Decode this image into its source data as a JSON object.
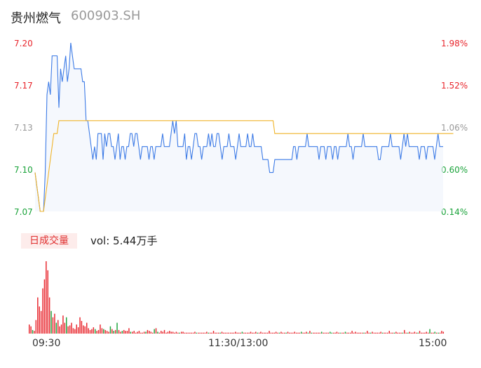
{
  "header": {
    "name": "贵州燃气",
    "code": "600903.SH"
  },
  "volume_panel": {
    "tab_label": "日成交量",
    "vol_label": "vol: 5.44万手"
  },
  "colors": {
    "price_line": "#3d7be6",
    "avg_line": "#f0b429",
    "up": "#e8252c",
    "down": "#1aa33a",
    "neutral": "#999999"
  },
  "chart_data": [
    {
      "type": "line",
      "y_ticks": [
        "7.20",
        "7.17",
        "7.13",
        "7.10",
        "7.07"
      ],
      "pct_ticks": [
        "1.98%",
        "1.52%",
        "1.06%",
        "0.60%",
        "0.14%"
      ],
      "x_ticks": [
        "09:30",
        "11:30/13:00",
        "15:00"
      ],
      "ylim": [
        7.07,
        7.2
      ],
      "series": [
        {
          "values": [
            7.1,
            7.09,
            7.08,
            7.07,
            7.07,
            7.07,
            7.1,
            7.16,
            7.17,
            7.16,
            7.19,
            7.19,
            7.19,
            7.19,
            7.15,
            7.18,
            7.17,
            7.18,
            7.19,
            7.17,
            7.18,
            7.2,
            7.19,
            7.18,
            7.18,
            7.18,
            7.18,
            7.18,
            7.17,
            7.17,
            7.14,
            7.14,
            7.13,
            7.12,
            7.11,
            7.12,
            7.11,
            7.13,
            7.13,
            7.13,
            7.11,
            7.13,
            7.12,
            7.13,
            7.13,
            7.12,
            7.12,
            7.11,
            7.12,
            7.13,
            7.11,
            7.12,
            7.12,
            7.11,
            7.12,
            7.12,
            7.13,
            7.13,
            7.12,
            7.13,
            7.13,
            7.12,
            7.11,
            7.12,
            7.12,
            7.12,
            7.12,
            7.11,
            7.12,
            7.12,
            7.11,
            7.12,
            7.12,
            7.12,
            7.12,
            7.13,
            7.12,
            7.12,
            7.12,
            7.12,
            7.13,
            7.14,
            7.13,
            7.14,
            7.12,
            7.12,
            7.12,
            7.12,
            7.13,
            7.11,
            7.12,
            7.12,
            7.11,
            7.12,
            7.13,
            7.13,
            7.12,
            7.12,
            7.11,
            7.12,
            7.12,
            7.12,
            7.13,
            7.12,
            7.13,
            7.12,
            7.12,
            7.13,
            7.13,
            7.12,
            7.11,
            7.12,
            7.12,
            7.12,
            7.13,
            7.12,
            7.12,
            7.12,
            7.11,
            7.12,
            7.13,
            7.12,
            7.12,
            7.12,
            7.12,
            7.13,
            7.12,
            7.12,
            7.13,
            7.12,
            7.12,
            7.12,
            7.12,
            7.12,
            7.11,
            7.11,
            7.11,
            7.11,
            7.1,
            7.1,
            7.1,
            7.11,
            7.11,
            7.11,
            7.11,
            7.11,
            7.11,
            7.11,
            7.11,
            7.11,
            7.11,
            7.11,
            7.12,
            7.12,
            7.11,
            7.12,
            7.12,
            7.12,
            7.12,
            7.12,
            7.13,
            7.12,
            7.12,
            7.12,
            7.12,
            7.12,
            7.12,
            7.11,
            7.12,
            7.12,
            7.12,
            7.11,
            7.12,
            7.12,
            7.12,
            7.11,
            7.12,
            7.12,
            7.11,
            7.12,
            7.12,
            7.12,
            7.12,
            7.12,
            7.13,
            7.12,
            7.12,
            7.11,
            7.12,
            7.12,
            7.12,
            7.12,
            7.12,
            7.13,
            7.12,
            7.12,
            7.12,
            7.12,
            7.12,
            7.12,
            7.12,
            7.12,
            7.11,
            7.11,
            7.12,
            7.12,
            7.12,
            7.12,
            7.12,
            7.13,
            7.12,
            7.12,
            7.12,
            7.12,
            7.12,
            7.11,
            7.12,
            7.13,
            7.12,
            7.13,
            7.12,
            7.12,
            7.12,
            7.12,
            7.12,
            7.12,
            7.11,
            7.12,
            7.12,
            7.12,
            7.11,
            7.12,
            7.12,
            7.12,
            7.12,
            7.11,
            7.12,
            7.13,
            7.12,
            7.12,
            7.12
          ]
        },
        {
          "values": [
            7.1,
            7.09,
            7.08,
            7.07,
            7.07,
            7.07,
            7.08,
            7.09,
            7.1,
            7.11,
            7.12,
            7.13,
            7.13,
            7.13,
            7.14,
            7.14,
            7.14,
            7.14,
            7.14,
            7.14,
            7.14,
            7.14,
            7.14,
            7.14,
            7.14,
            7.14,
            7.14,
            7.14,
            7.14,
            7.14,
            7.14,
            7.14,
            7.14,
            7.14,
            7.14,
            7.14,
            7.14,
            7.14,
            7.14,
            7.14,
            7.14,
            7.14,
            7.14,
            7.14,
            7.14,
            7.14,
            7.14,
            7.14,
            7.14,
            7.14,
            7.14,
            7.14,
            7.14,
            7.14,
            7.14,
            7.14,
            7.14,
            7.14,
            7.14,
            7.14,
            7.14,
            7.14,
            7.14,
            7.14,
            7.14,
            7.14,
            7.14,
            7.14,
            7.14,
            7.14,
            7.14,
            7.14,
            7.14,
            7.14,
            7.14,
            7.14,
            7.14,
            7.14,
            7.14,
            7.14,
            7.14,
            7.14,
            7.14,
            7.14,
            7.14,
            7.14,
            7.14,
            7.14,
            7.14,
            7.14,
            7.14,
            7.14,
            7.14,
            7.14,
            7.14,
            7.14,
            7.14,
            7.14,
            7.14,
            7.14,
            7.14,
            7.14,
            7.14,
            7.14,
            7.14,
            7.14,
            7.14,
            7.14,
            7.14,
            7.14,
            7.14,
            7.14,
            7.14,
            7.14,
            7.14,
            7.14,
            7.14,
            7.14,
            7.14,
            7.14,
            7.14,
            7.14,
            7.14,
            7.14,
            7.14,
            7.14,
            7.14,
            7.14,
            7.14,
            7.14,
            7.14,
            7.14,
            7.14,
            7.14,
            7.14,
            7.14,
            7.14,
            7.14,
            7.14,
            7.14,
            7.14,
            7.13,
            7.13,
            7.13,
            7.13,
            7.13,
            7.13,
            7.13,
            7.13,
            7.13,
            7.13,
            7.13,
            7.13,
            7.13,
            7.13,
            7.13,
            7.13,
            7.13,
            7.13,
            7.13,
            7.13,
            7.13,
            7.13,
            7.13,
            7.13,
            7.13,
            7.13,
            7.13,
            7.13,
            7.13,
            7.13,
            7.13,
            7.13,
            7.13,
            7.13,
            7.13,
            7.13,
            7.13,
            7.13,
            7.13,
            7.13,
            7.13,
            7.13,
            7.13,
            7.13,
            7.13,
            7.13,
            7.13,
            7.13,
            7.13,
            7.13,
            7.13,
            7.13,
            7.13,
            7.13,
            7.13,
            7.13,
            7.13,
            7.13,
            7.13,
            7.13,
            7.13,
            7.13,
            7.13,
            7.13,
            7.13,
            7.13,
            7.13,
            7.13,
            7.13,
            7.13,
            7.13,
            7.13,
            7.13,
            7.13,
            7.13,
            7.13,
            7.13,
            7.13,
            7.13,
            7.13,
            7.13,
            7.13,
            7.13,
            7.13,
            7.13,
            7.13,
            7.13,
            7.13,
            7.13,
            7.13,
            7.13,
            7.13,
            7.13,
            7.13,
            7.13,
            7.13,
            7.13,
            7.13,
            7.13,
            7.13,
            7.13,
            7.13,
            7.13,
            7.13,
            7.13,
            7.13
          ]
        }
      ]
    },
    {
      "type": "bar",
      "values": [
        10,
        8,
        4,
        3,
        15,
        40,
        30,
        25,
        50,
        60,
        80,
        70,
        40,
        25,
        18,
        22,
        12,
        15,
        8,
        10,
        20,
        12,
        18,
        8,
        9,
        12,
        6,
        5,
        10,
        7,
        18,
        14,
        9,
        8,
        12,
        6,
        4,
        5,
        7,
        5,
        3,
        4,
        10,
        6,
        5,
        4,
        3,
        2,
        8,
        5,
        3,
        4,
        12,
        4,
        2,
        3,
        4,
        3,
        3,
        6,
        2,
        2,
        3,
        1,
        2,
        3,
        1,
        1,
        2,
        2,
        4,
        3,
        2,
        1,
        5,
        6,
        2,
        1,
        3,
        2,
        4,
        1,
        2,
        3,
        2,
        2,
        1,
        2,
        1,
        1,
        2,
        2,
        1,
        1,
        1,
        1,
        1,
        1,
        2,
        1,
        1,
        1,
        1,
        1,
        1,
        2,
        1,
        1,
        1,
        3,
        1,
        1,
        1,
        1,
        2,
        1,
        1,
        1,
        1,
        1,
        1,
        1,
        2,
        1,
        1,
        1,
        2,
        1,
        1,
        1,
        1,
        2,
        1,
        1,
        2,
        1,
        1,
        2,
        1,
        1,
        1,
        1,
        3,
        1,
        1,
        1,
        2,
        1,
        1,
        2,
        1,
        1,
        1,
        2,
        1,
        1,
        1,
        2,
        1,
        1,
        1,
        2,
        1,
        1,
        2,
        1,
        3,
        1,
        1,
        1,
        1,
        1,
        1,
        2,
        1,
        1,
        1,
        1,
        2,
        1,
        1,
        1,
        2,
        1,
        1,
        1,
        1,
        2,
        1,
        1,
        1,
        3,
        1,
        2,
        1,
        1,
        1,
        1,
        1,
        1,
        3,
        1,
        1,
        2,
        1,
        1,
        1,
        1,
        2,
        1,
        1,
        1,
        1,
        3,
        1,
        1,
        1,
        2,
        1,
        1,
        1,
        1,
        4,
        1,
        1,
        2,
        1,
        1,
        2,
        1,
        1,
        3,
        1,
        1,
        1,
        2,
        1,
        5,
        1,
        1,
        2,
        1,
        1,
        1,
        3,
        2
      ],
      "directions": [
        1,
        1,
        -1,
        1,
        1,
        1,
        1,
        1,
        1,
        1,
        1,
        1,
        1,
        -1,
        1,
        1,
        -1,
        1,
        1,
        1,
        1,
        1,
        -1,
        1,
        1,
        1,
        1,
        1,
        1,
        1,
        1,
        1,
        1,
        1,
        1,
        1,
        1,
        1,
        1,
        -1,
        1,
        1,
        1,
        1,
        -1,
        1,
        1,
        1,
        -1,
        1,
        -1,
        1,
        -1,
        1,
        1,
        -1,
        1,
        1,
        1,
        1,
        -1,
        1,
        1,
        1,
        1,
        1,
        1,
        1,
        1,
        -1,
        1,
        1,
        1,
        1,
        -1,
        1,
        -1,
        1,
        1,
        1,
        1,
        1,
        1,
        1,
        1,
        1,
        1,
        1,
        1,
        -1,
        1,
        1,
        1,
        1,
        1,
        1,
        1,
        1,
        1,
        -1,
        1,
        1,
        1,
        1,
        1,
        1,
        -1,
        1,
        1,
        1,
        1,
        1,
        1,
        -1,
        1,
        1,
        1,
        1,
        1,
        1,
        1,
        1,
        1,
        1,
        1,
        1,
        -1,
        1,
        1,
        1,
        1,
        1,
        1,
        1,
        1,
        -1,
        1,
        1,
        1,
        1,
        1,
        1,
        1,
        1,
        1,
        1,
        1,
        1,
        -1,
        1,
        1,
        1,
        -1,
        1,
        1,
        1,
        1,
        1,
        1,
        1,
        1,
        -1,
        1,
        1,
        1,
        -1,
        1,
        -1,
        1,
        1,
        1,
        1,
        1,
        -1,
        1,
        1,
        1,
        1,
        -1,
        -1,
        1,
        1,
        1,
        1,
        -1,
        1,
        1,
        -1,
        1,
        1,
        1,
        1,
        1,
        1,
        1,
        1,
        1,
        1,
        -1,
        1,
        1,
        1,
        -1,
        1,
        1,
        1,
        1,
        1,
        1,
        -1,
        1,
        1,
        1,
        1,
        1,
        1,
        -1,
        1,
        1,
        1,
        1,
        -1,
        1,
        1,
        -1,
        1,
        1,
        1,
        1,
        1,
        -1,
        1,
        1,
        1,
        1,
        1,
        1,
        -1,
        1,
        1,
        -1,
        1,
        -1,
        1,
        1,
        1,
        -1,
        1,
        1,
        1,
        1,
        1,
        1,
        -1,
        0
      ]
    }
  ]
}
